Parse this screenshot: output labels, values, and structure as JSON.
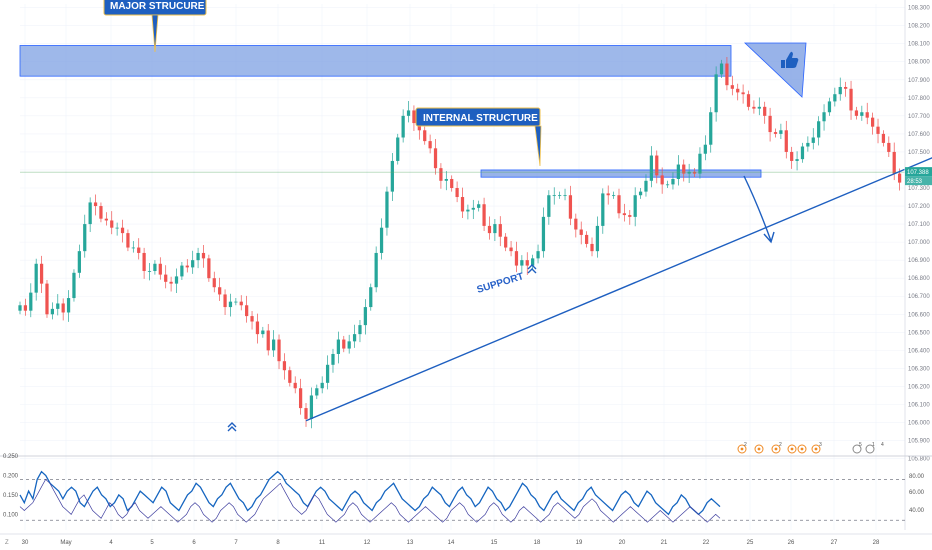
{
  "colors": {
    "up": "#26a69a",
    "down": "#ef5350",
    "zone_fill": "#7ea0e3",
    "zone_stroke": "#2962ff",
    "trend": "#1e5fc0",
    "callout": "#1e5fc0",
    "callout_border": "#f0c04a",
    "price_line": "#5aaa6a",
    "osc_primary": "#1565c0",
    "osc_secondary": "#3f3f9f",
    "grid": "#f0f3fa"
  },
  "annotations": {
    "major": "MAJOR STRUCURE",
    "internal": "INTERNAL STRUCTURE",
    "support": "SUPPORT",
    "thumb_icon": "thumbs-up-icon",
    "arrow_icon": "double-chevron-up-icon"
  },
  "current_price": "107.388",
  "countdown": "28:53",
  "x_labels": [
    "30",
    "May",
    "4",
    "5",
    "6",
    "7",
    "8",
    "11",
    "12",
    "13",
    "14",
    "15",
    "18",
    "19",
    "20",
    "21",
    "22",
    "25",
    "26",
    "27",
    "28"
  ],
  "corner_label": "Z",
  "news_badges": [
    "2",
    "2",
    "3",
    "5",
    "1",
    "4"
  ],
  "chart_data": [
    {
      "type": "candlestick",
      "ylim": [
        105.82,
        108.32
      ],
      "y_ticks": [
        "108.300",
        "108.200",
        "108.100",
        "108.000",
        "107.900",
        "107.800",
        "107.700",
        "107.600",
        "107.500",
        "107.400",
        "107.300",
        "107.200",
        "107.100",
        "107.000",
        "106.900",
        "106.800",
        "106.700",
        "106.600",
        "106.500",
        "106.400",
        "106.300",
        "106.200",
        "106.100",
        "106.000",
        "105.900",
        "105.800"
      ],
      "x_index_range": [
        0,
        164
      ],
      "closes": [
        106.65,
        106.62,
        106.72,
        106.88,
        106.77,
        106.6,
        106.63,
        106.66,
        106.61,
        106.69,
        106.83,
        106.95,
        107.1,
        107.22,
        107.2,
        107.13,
        107.12,
        107.08,
        107.08,
        107.05,
        106.97,
        106.97,
        106.94,
        106.84,
        106.84,
        106.88,
        106.82,
        106.78,
        106.77,
        106.81,
        106.87,
        106.86,
        106.9,
        106.94,
        106.91,
        106.8,
        106.75,
        106.71,
        106.64,
        106.67,
        106.67,
        106.65,
        106.59,
        106.56,
        106.49,
        106.51,
        106.4,
        106.46,
        106.34,
        106.29,
        106.22,
        106.19,
        106.08,
        106.02,
        106.15,
        106.19,
        106.22,
        106.32,
        106.38,
        106.46,
        106.41,
        106.45,
        106.49,
        106.54,
        106.64,
        106.75,
        106.94,
        107.08,
        107.28,
        107.45,
        107.58,
        107.7,
        107.73,
        107.66,
        107.62,
        107.56,
        107.52,
        107.41,
        107.34,
        107.35,
        107.3,
        107.25,
        107.17,
        107.18,
        107.19,
        107.21,
        107.09,
        107.05,
        107.1,
        107.03,
        106.97,
        106.95,
        106.87,
        106.9,
        106.87,
        106.91,
        106.95,
        107.14,
        107.26,
        107.26,
        107.26,
        107.26,
        107.13,
        107.07,
        107.04,
        106.99,
        106.95,
        107.09,
        107.27,
        107.26,
        107.26,
        107.16,
        107.15,
        107.14,
        107.26,
        107.28,
        107.34,
        107.48,
        107.37,
        107.32,
        107.32,
        107.35,
        107.43,
        107.38,
        107.39,
        107.38,
        107.49,
        107.54,
        107.72,
        107.93,
        107.99,
        107.87,
        107.85,
        107.83,
        107.82,
        107.75,
        107.74,
        107.75,
        107.7,
        107.61,
        107.6,
        107.62,
        107.5,
        107.45,
        107.46,
        107.53,
        107.55,
        107.58,
        107.67,
        107.72,
        107.78,
        107.82,
        107.86,
        107.85,
        107.73,
        107.7,
        107.72,
        107.69,
        107.64,
        107.6,
        107.55,
        107.5,
        107.38,
        107.33
      ],
      "zones": [
        {
          "from": 107.92,
          "to": 108.09
        },
        {
          "from": 107.36,
          "to": 107.4
        }
      ],
      "trend_line": {
        "start": [
          53,
          106.01
        ],
        "end": [
          182,
          107.63
        ]
      }
    },
    {
      "type": "line",
      "panel": "oscillator",
      "y_ticks_left": [
        "0.250",
        "0.200",
        "0.150",
        "0.100"
      ],
      "y_ticks_right": [
        "80.00",
        "60.00",
        "40.00"
      ],
      "ylim": [
        0.06,
        0.25
      ],
      "levels": [
        0.19,
        0.085
      ],
      "series": [
        {
          "values": [
            0.15,
            0.13,
            0.16,
            0.14,
            0.19,
            0.21,
            0.2,
            0.18,
            0.17,
            0.16,
            0.14,
            0.16,
            0.17,
            0.16,
            0.13,
            0.12,
            0.14,
            0.16,
            0.17,
            0.15,
            0.14,
            0.12,
            0.13,
            0.15,
            0.14,
            0.11,
            0.12,
            0.14,
            0.16,
            0.15,
            0.14,
            0.13,
            0.15,
            0.17,
            0.16,
            0.13,
            0.12,
            0.11,
            0.13,
            0.15,
            0.16,
            0.18,
            0.17,
            0.15,
            0.13,
            0.12,
            0.14,
            0.15,
            0.17,
            0.18,
            0.16,
            0.14,
            0.13,
            0.11,
            0.12,
            0.14,
            0.15,
            0.17,
            0.19,
            0.2,
            0.21,
            0.2,
            0.18,
            0.17,
            0.16,
            0.15,
            0.13,
            0.12,
            0.14,
            0.16,
            0.17,
            0.16,
            0.14,
            0.13,
            0.12,
            0.11,
            0.13,
            0.15,
            0.16,
            0.15,
            0.13,
            0.12,
            0.11,
            0.13,
            0.14,
            0.16,
            0.17,
            0.18,
            0.16,
            0.14,
            0.13,
            0.12,
            0.11,
            0.12,
            0.14,
            0.15,
            0.17,
            0.16,
            0.15,
            0.13,
            0.12,
            0.14,
            0.16,
            0.17,
            0.15,
            0.14,
            0.12,
            0.13,
            0.15,
            0.17,
            0.16,
            0.14,
            0.13,
            0.11,
            0.12,
            0.14,
            0.16,
            0.18,
            0.17,
            0.15,
            0.14,
            0.12,
            0.11,
            0.13,
            0.15,
            0.16,
            0.14,
            0.13,
            0.12,
            0.11,
            0.13,
            0.14,
            0.16,
            0.17,
            0.15,
            0.14,
            0.13,
            0.12,
            0.11,
            0.13,
            0.15,
            0.16,
            0.15,
            0.13,
            0.12,
            0.14,
            0.16,
            0.15,
            0.13,
            0.12,
            0.11,
            0.1,
            0.12,
            0.13,
            0.15,
            0.14,
            0.12,
            0.11,
            0.1,
            0.11,
            0.13,
            0.14,
            0.13,
            0.12
          ]
        },
        {
          "values": [
            0.12,
            0.11,
            0.12,
            0.13,
            0.15,
            0.17,
            0.19,
            0.18,
            0.16,
            0.14,
            0.12,
            0.11,
            0.1,
            0.12,
            0.14,
            0.15,
            0.13,
            0.11,
            0.1,
            0.09,
            0.11,
            0.13,
            0.12,
            0.1,
            0.09,
            0.1,
            0.12,
            0.13,
            0.11,
            0.1,
            0.09,
            0.1,
            0.11,
            0.12,
            0.11,
            0.1,
            0.09,
            0.08,
            0.09,
            0.1,
            0.12,
            0.13,
            0.12,
            0.1,
            0.09,
            0.08,
            0.09,
            0.11,
            0.12,
            0.13,
            0.12,
            0.1,
            0.09,
            0.08,
            0.09,
            0.1,
            0.12,
            0.14,
            0.15,
            0.16,
            0.17,
            0.18,
            0.16,
            0.14,
            0.12,
            0.11,
            0.1,
            0.11,
            0.13,
            0.15,
            0.14,
            0.12,
            0.1,
            0.09,
            0.08,
            0.09,
            0.1,
            0.12,
            0.13,
            0.12,
            0.1,
            0.09,
            0.08,
            0.09,
            0.1,
            0.11,
            0.12,
            0.13,
            0.12,
            0.1,
            0.09,
            0.08,
            0.09,
            0.1,
            0.11,
            0.12,
            0.11,
            0.1,
            0.09,
            0.08,
            0.09,
            0.11,
            0.12,
            0.13,
            0.12,
            0.1,
            0.09,
            0.08,
            0.09,
            0.1,
            0.12,
            0.13,
            0.12,
            0.1,
            0.09,
            0.08,
            0.09,
            0.11,
            0.12,
            0.11,
            0.1,
            0.09,
            0.08,
            0.09,
            0.1,
            0.12,
            0.13,
            0.12,
            0.11,
            0.1,
            0.09,
            0.1,
            0.12,
            0.13,
            0.14,
            0.13,
            0.11,
            0.1,
            0.09,
            0.08,
            0.09,
            0.1,
            0.11,
            0.12,
            0.11,
            0.1,
            0.09,
            0.08,
            0.09,
            0.1,
            0.11,
            0.1,
            0.09,
            0.08,
            0.09,
            0.1,
            0.11,
            0.12,
            0.11,
            0.1,
            0.09,
            0.08,
            0.09,
            0.1,
            0.09
          ]
        }
      ]
    }
  ]
}
